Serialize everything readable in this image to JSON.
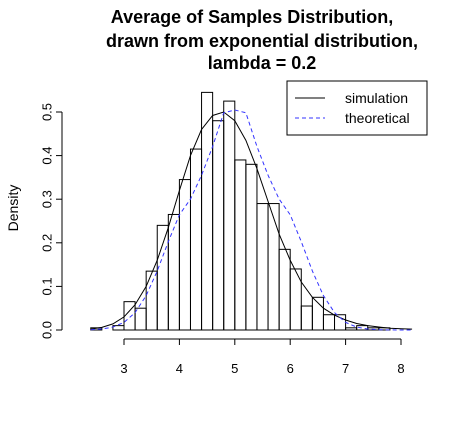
{
  "chart_data": {
    "type": "histogram",
    "title_lines": [
      "Average of Samples Distribution,",
      "drawn from exponential distribution,",
      "lambda = 0.2"
    ],
    "xlabel": "",
    "ylabel": "Density",
    "xlim": [
      2.2,
      8.5
    ],
    "ylim": [
      0,
      0.55
    ],
    "x_ticks": [
      3,
      4,
      5,
      6,
      7,
      8
    ],
    "x_tick_labels": [
      "3",
      "4",
      "5",
      "6",
      "7",
      "8"
    ],
    "y_ticks": [
      0.0,
      0.1,
      0.2,
      0.3,
      0.4,
      0.5
    ],
    "y_tick_labels": [
      "0.0",
      "0.1",
      "0.2",
      "0.3",
      "0.4",
      "0.5"
    ],
    "bins": {
      "start": 2.4,
      "width": 0.2,
      "densities": [
        0.005,
        0.0,
        0.01,
        0.065,
        0.05,
        0.135,
        0.24,
        0.265,
        0.345,
        0.415,
        0.545,
        0.48,
        0.525,
        0.39,
        0.38,
        0.29,
        0.29,
        0.185,
        0.14,
        0.055,
        0.075,
        0.035,
        0.035,
        0.005,
        0.01,
        0.005,
        0.005
      ]
    },
    "series": [
      {
        "name": "simulation",
        "style": "solid",
        "color": "#000000",
        "x": [
          2.4,
          2.6,
          2.8,
          3.0,
          3.2,
          3.4,
          3.6,
          3.8,
          4.0,
          4.2,
          4.4,
          4.6,
          4.8,
          5.0,
          5.2,
          5.4,
          5.6,
          5.8,
          6.0,
          6.2,
          6.4,
          6.6,
          6.8,
          7.0,
          7.2,
          7.4,
          7.6,
          7.8,
          8.0,
          8.2
        ],
        "y": [
          0.002,
          0.006,
          0.014,
          0.03,
          0.058,
          0.1,
          0.16,
          0.235,
          0.32,
          0.4,
          0.46,
          0.492,
          0.5,
          0.48,
          0.435,
          0.37,
          0.295,
          0.22,
          0.16,
          0.11,
          0.075,
          0.05,
          0.034,
          0.023,
          0.015,
          0.01,
          0.007,
          0.004,
          0.003,
          0.002
        ]
      },
      {
        "name": "theoretical",
        "style": "dashed",
        "color": "#3333ff",
        "x": [
          2.4,
          2.6,
          2.8,
          3.0,
          3.2,
          3.4,
          3.6,
          3.8,
          4.0,
          4.2,
          4.4,
          4.6,
          4.8,
          5.0,
          5.2,
          5.4,
          5.6,
          5.8,
          6.0,
          6.2,
          6.4,
          6.6,
          6.8,
          7.0,
          7.2,
          7.4,
          7.6,
          7.8,
          8.0,
          8.2
        ],
        "y": [
          0.0006,
          0.0022,
          0.0067,
          0.0175,
          0.0399,
          0.0788,
          0.1354,
          0.2027,
          0.2643,
          0.3003,
          0.355,
          0.4208,
          0.4982,
          0.5046,
          0.4982,
          0.4208,
          0.355,
          0.3003,
          0.2643,
          0.2027,
          0.1354,
          0.0788,
          0.0399,
          0.0175,
          0.0067,
          0.0022,
          0.0006,
          0.0002,
          0.0001,
          0.0
        ]
      }
    ],
    "legend": {
      "position": "top-right",
      "entries": [
        {
          "label": "simulation",
          "style": "solid",
          "color": "#000000"
        },
        {
          "label": "theoretical",
          "style": "dashed",
          "color": "#3333ff"
        }
      ]
    },
    "grid": false
  }
}
